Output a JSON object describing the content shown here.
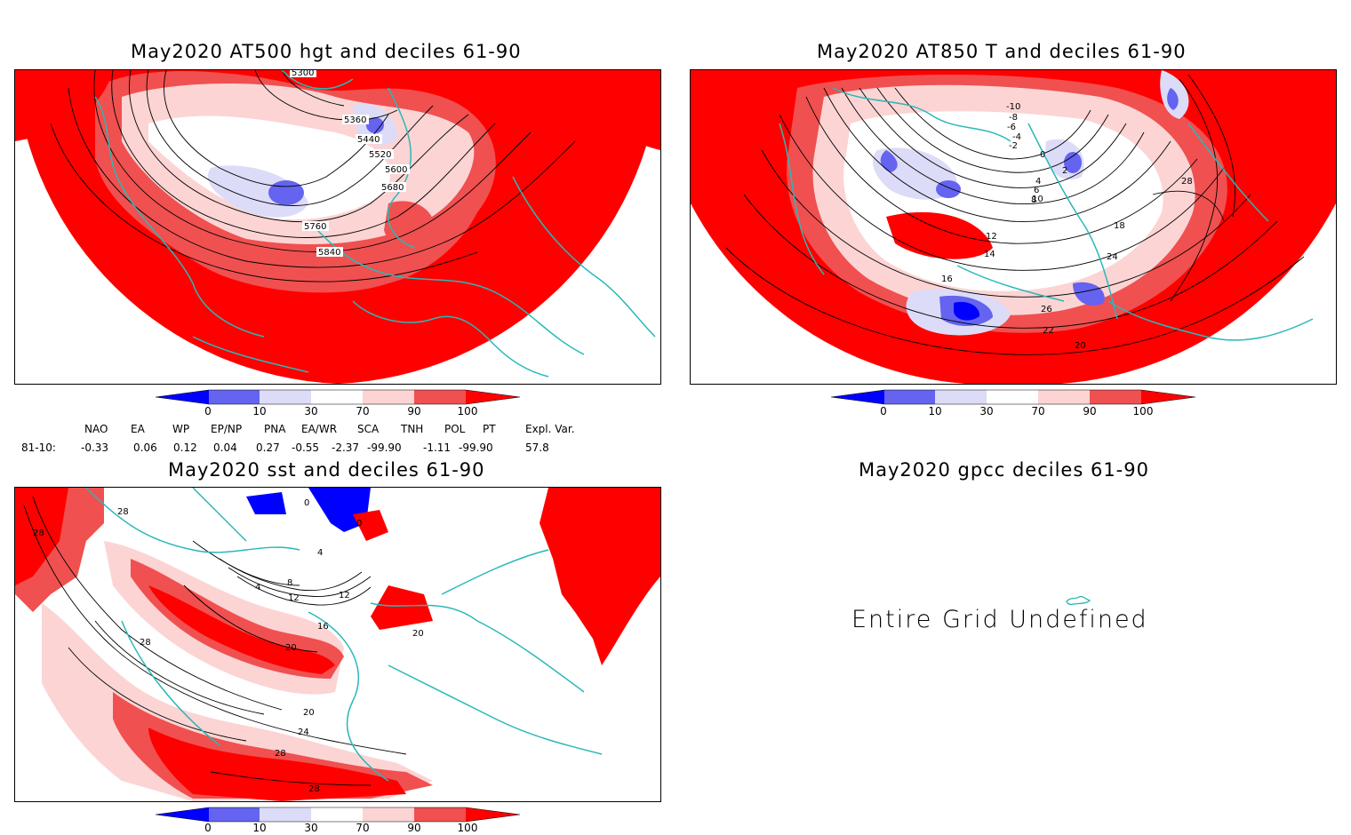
{
  "palette": {
    "red_strong": "#ff0000",
    "red_mid": "#f05050",
    "red_light": "#fcd4d4",
    "blue_light": "#dcdcf8",
    "blue_mid": "#6464f0",
    "blue_strong": "#0000ff",
    "coast": "#2ab8b8"
  },
  "colorbar": {
    "ticks": [
      "0",
      "10",
      "30",
      "70",
      "90",
      "100"
    ]
  },
  "panels": [
    {
      "title": "May2020 AT500 hgt and deciles 61-90",
      "contour_labels": [
        "5360",
        "5440",
        "5520",
        "5600",
        "5680",
        "5760",
        "5840",
        "5300"
      ]
    },
    {
      "title": "May2020 AT850 T and deciles 61-90",
      "contour_labels": [
        "-10",
        "-8",
        "-6",
        "-4",
        "-2",
        "0",
        "2",
        "4",
        "6",
        "8",
        "10",
        "12",
        "14",
        "16",
        "18",
        "20",
        "22",
        "24",
        "26",
        "28"
      ]
    },
    {
      "title": "May2020 sst and deciles 61-90",
      "contour_labels": [
        "0",
        "4",
        "8",
        "12",
        "16",
        "20",
        "24",
        "28"
      ]
    },
    {
      "title": "May2020 gpcc deciles 61-90",
      "message": "Entire Grid Undefined"
    }
  ],
  "indices": {
    "headers": [
      "NAO",
      "EA",
      "WP",
      "EP/NP",
      "PNA",
      "EA/WR",
      "SCA",
      "TNH",
      "POL",
      "PT",
      "Expl. Var."
    ],
    "row_label": "81-10:",
    "values": [
      "-0.33",
      "0.06",
      "0.12",
      "0.04",
      "0.27",
      "-0.55",
      "-2.37",
      "-99.90",
      "-1.11",
      "-99.90",
      "57.8"
    ]
  }
}
